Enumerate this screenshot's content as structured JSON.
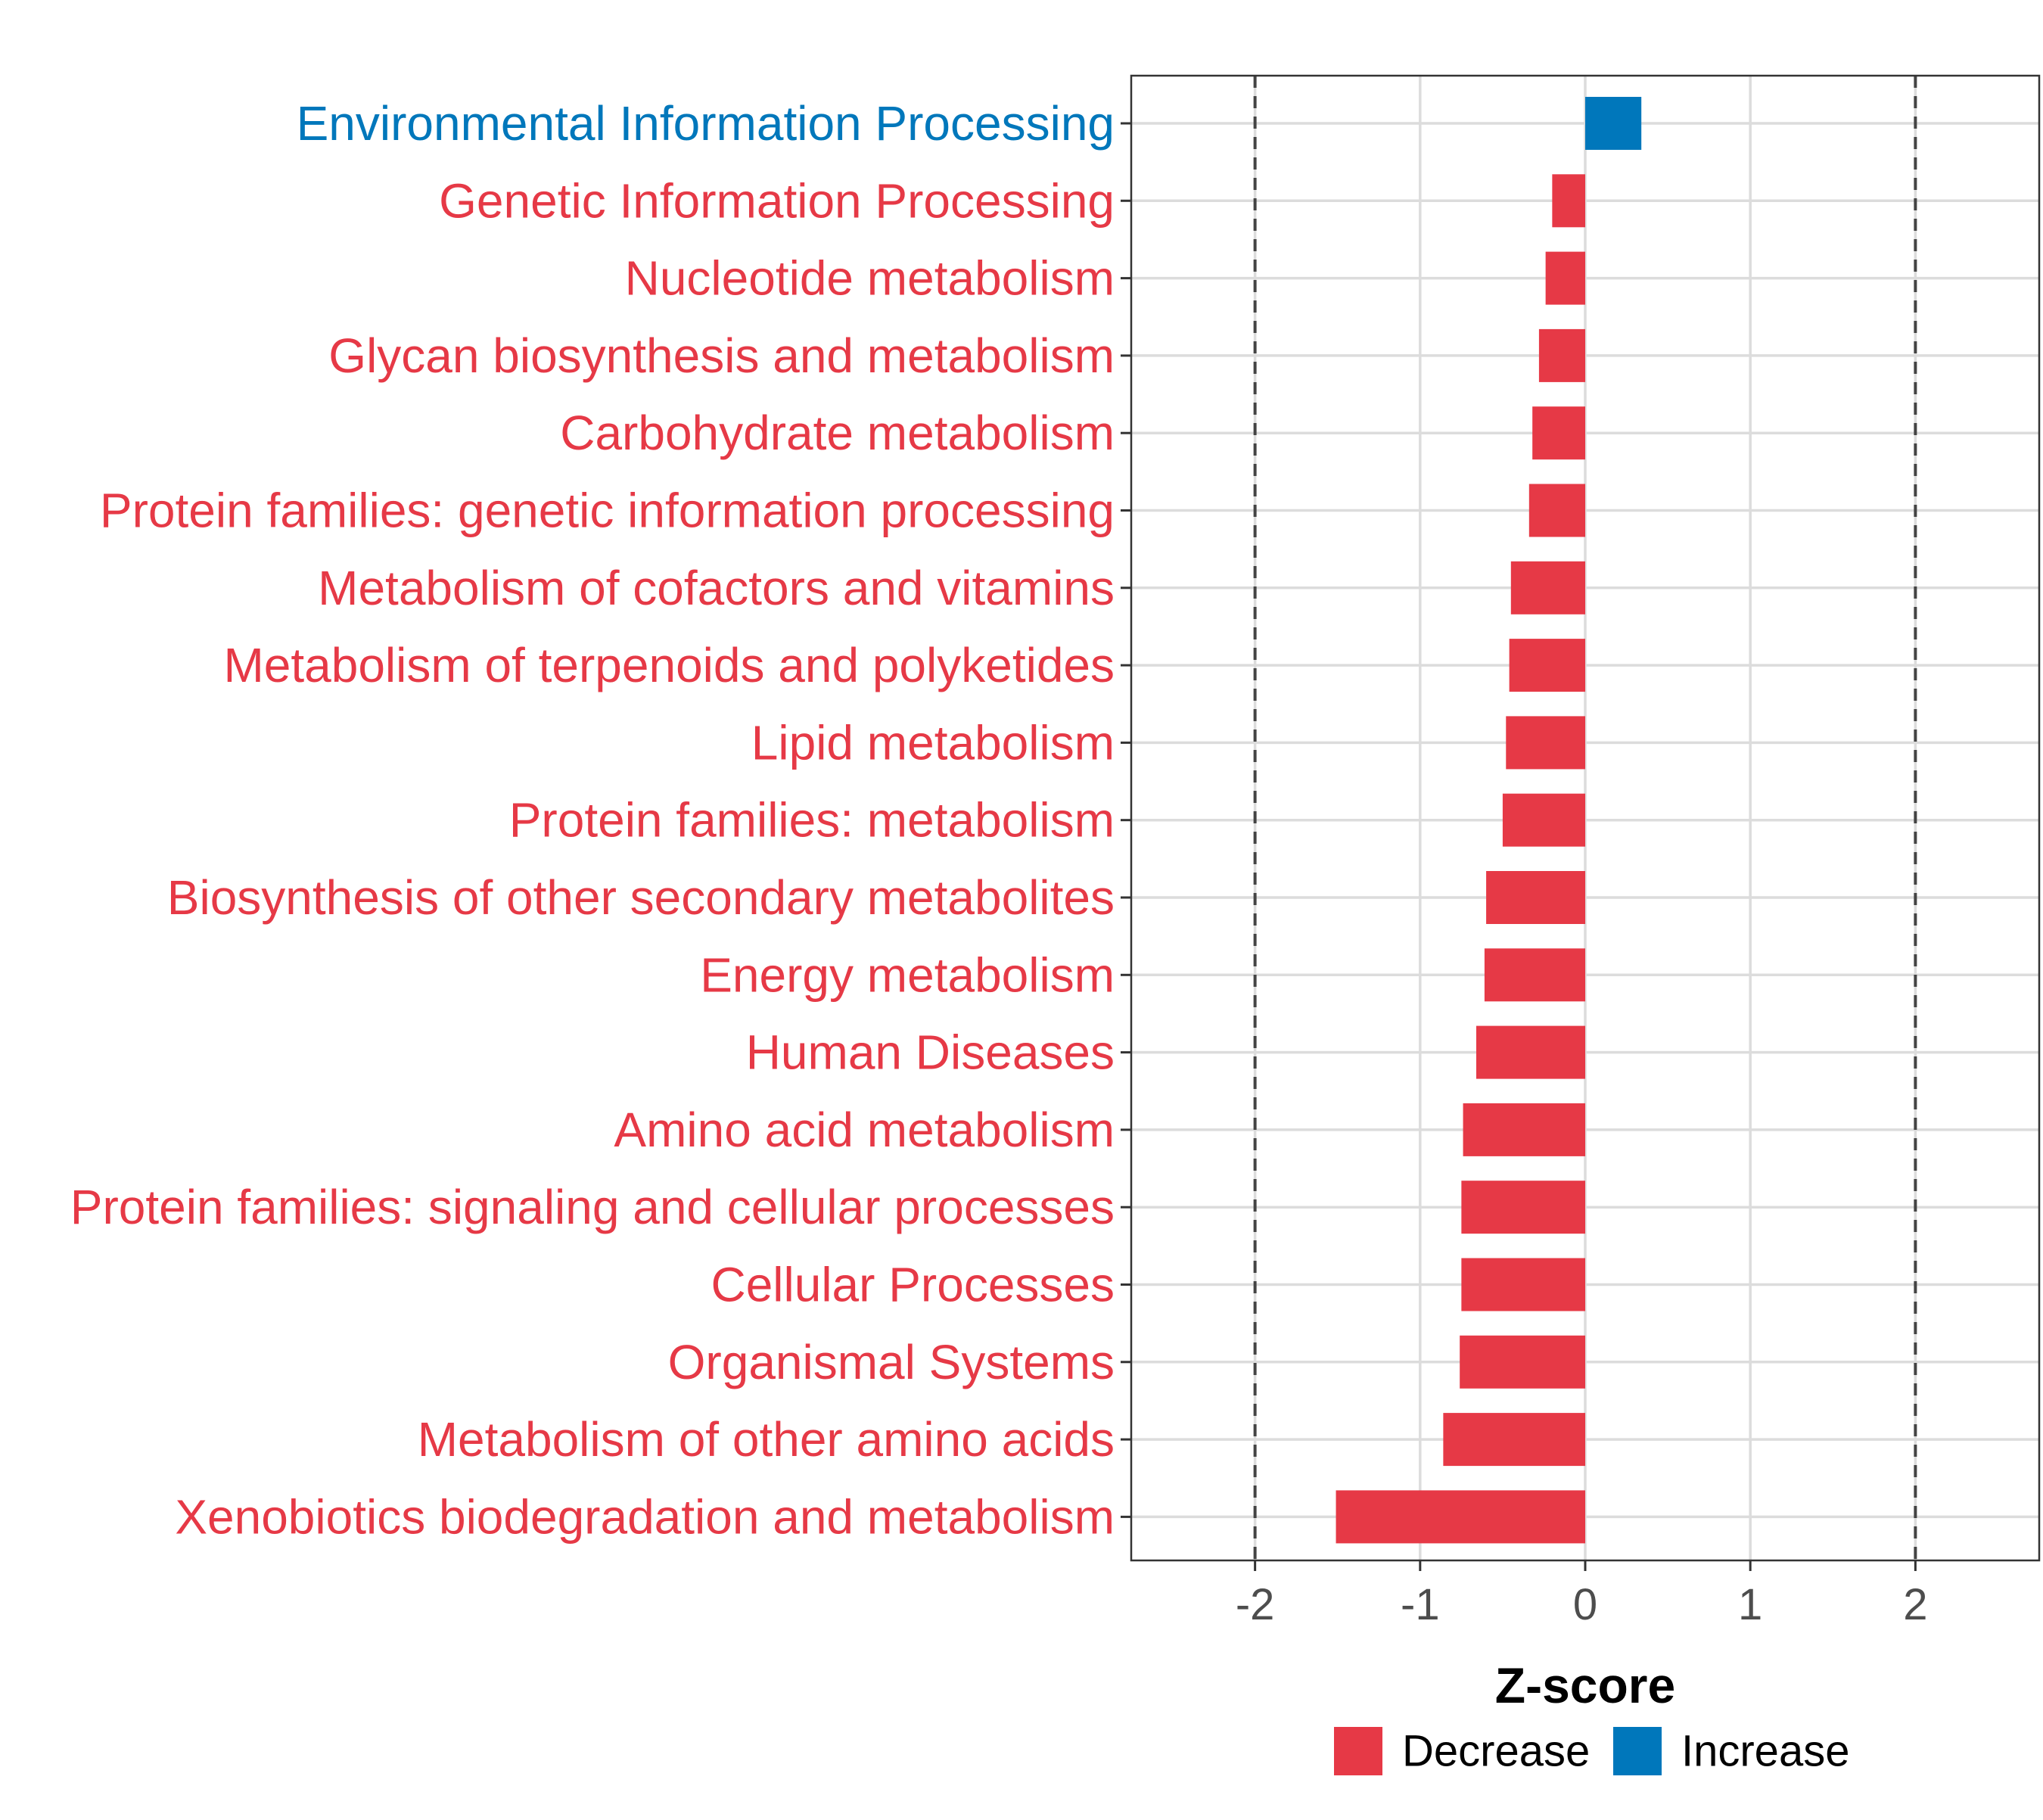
{
  "chart_data": {
    "type": "bar",
    "orientation": "horizontal",
    "title": "",
    "xlabel": "Z-score",
    "ylabel": "",
    "xlim": [
      -2.75,
      2.75
    ],
    "x_ticks": [
      -2,
      -1,
      0,
      1,
      2
    ],
    "x_tick_labels": [
      "-2",
      "-1",
      "0",
      "1",
      "2"
    ],
    "reference_lines": [
      -2,
      2
    ],
    "grid": true,
    "legend_position": "bottom",
    "colors": {
      "Decrease": "#E63946",
      "Increase": "#0077BB"
    },
    "legend": [
      {
        "label": "Decrease",
        "color": "#E63946"
      },
      {
        "label": "Increase",
        "color": "#0077BB"
      }
    ],
    "categories": [
      "Environmental Information Processing",
      "Genetic Information Processing",
      "Nucleotide metabolism",
      "Glycan biosynthesis and metabolism",
      "Carbohydrate metabolism",
      "Protein families: genetic information processing",
      "Metabolism of cofactors and vitamins",
      "Metabolism of terpenoids and polyketides",
      "Lipid metabolism",
      "Protein families: metabolism",
      "Biosynthesis of other secondary metabolites",
      "Energy metabolism",
      "Human Diseases",
      "Amino acid metabolism",
      "Protein families: signaling and cellular processes",
      "Cellular Processes",
      "Organismal Systems",
      "Metabolism of other amino acids",
      "Xenobiotics biodegradation and metabolism"
    ],
    "values": [
      0.34,
      -0.2,
      -0.24,
      -0.28,
      -0.32,
      -0.34,
      -0.45,
      -0.46,
      -0.48,
      -0.5,
      -0.6,
      -0.61,
      -0.66,
      -0.74,
      -0.75,
      -0.75,
      -0.76,
      -0.86,
      -1.51
    ],
    "groups": [
      "Increase",
      "Decrease",
      "Decrease",
      "Decrease",
      "Decrease",
      "Decrease",
      "Decrease",
      "Decrease",
      "Decrease",
      "Decrease",
      "Decrease",
      "Decrease",
      "Decrease",
      "Decrease",
      "Decrease",
      "Decrease",
      "Decrease",
      "Decrease",
      "Decrease"
    ]
  }
}
